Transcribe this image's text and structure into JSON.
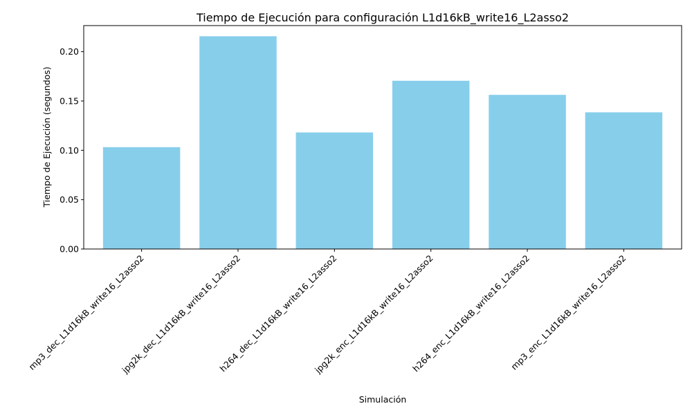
{
  "chart_data": {
    "type": "bar",
    "title": "Tiempo de Ejecución para configuración L1d16kB_write16_L2asso2",
    "xlabel": "Simulación",
    "ylabel": "Tiempo de Ejecución (segundos)",
    "categories": [
      "mp3_dec_L1d16kB_write16_L2asso2",
      "jpg2k_dec_L1d16kB_write16_L2asso2",
      "h264_dec_L1d16kB_write16_L2asso2",
      "jpg2k_enc_L1d16kB_write16_L2asso2",
      "h264_enc_L1d16kB_write16_L2asso2",
      "mp3_enc_L1d16kB_write16_L2asso2"
    ],
    "values": [
      0.1032,
      0.2156,
      0.1181,
      0.1705,
      0.1562,
      0.1385
    ],
    "ylim": [
      0,
      0.2264
    ],
    "yticks": [
      "0.00",
      "0.05",
      "0.10",
      "0.15",
      "0.20"
    ],
    "bar_color": "#87ceeb",
    "grid": false,
    "legend": "none"
  }
}
